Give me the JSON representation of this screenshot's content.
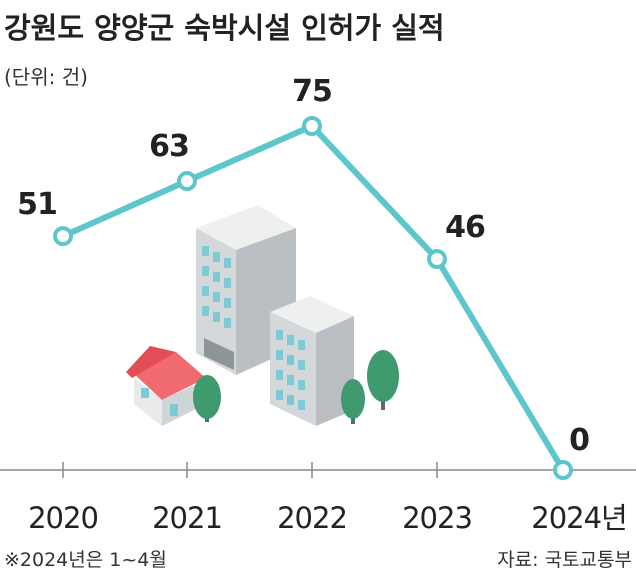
{
  "chart_data": {
    "type": "line",
    "title": "강원도 양양군 숙박시설 인허가 실적",
    "unit": "(단위: 건)",
    "categories": [
      "2020",
      "2021",
      "2022",
      "2023",
      "2024년"
    ],
    "values": [
      51,
      63,
      75,
      46,
      0
    ],
    "ylim": [
      0,
      75
    ],
    "grid": false,
    "line_color": "#5cc6cc",
    "axis_color": "#888888"
  },
  "footnote": "※2024년은 1~4월",
  "source": "자료: 국토교통부"
}
